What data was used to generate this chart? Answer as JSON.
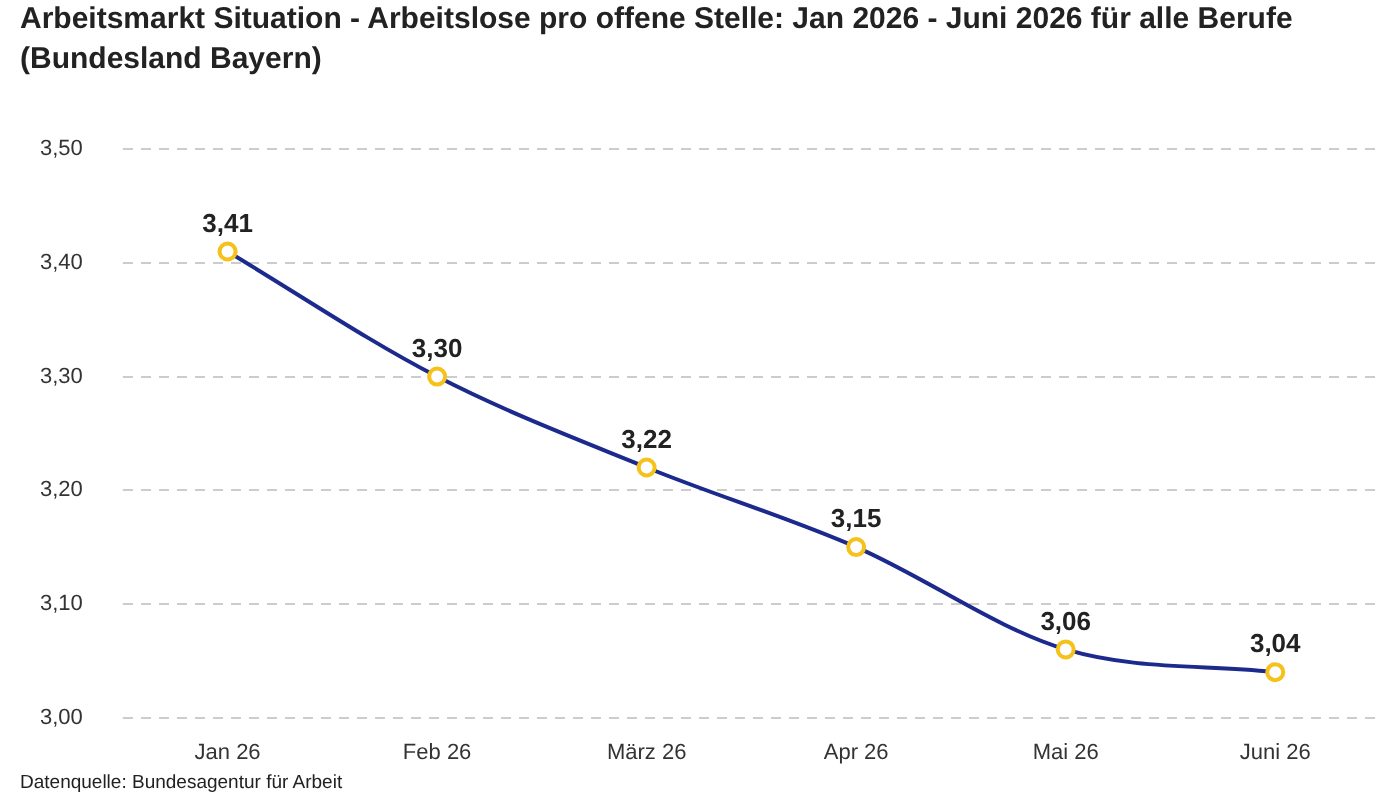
{
  "chart_data": {
    "type": "line",
    "title": "Arbeitsmarkt Situation - Arbeitslose pro offene Stelle: Jan 2026 - Juni 2026 für alle Berufe (Bundesland Bayern)",
    "categories": [
      "Jan 26",
      "Feb 26",
      "März 26",
      "Apr 26",
      "Mai 26",
      "Juni 26"
    ],
    "series": [
      {
        "color": "#1b2a8c",
        "values": [
          3.41,
          3.3,
          3.22,
          3.15,
          3.06,
          3.04
        ],
        "value_labels": [
          "3,41",
          "3,30",
          "3,22",
          "3,15",
          "3,06",
          "3,04"
        ]
      }
    ],
    "ylim": [
      3.0,
      3.5
    ],
    "yticks": [
      {
        "value": 3.0,
        "label": "3,00"
      },
      {
        "value": 3.1,
        "label": "3,10"
      },
      {
        "value": 3.2,
        "label": "3,20"
      },
      {
        "value": 3.3,
        "label": "3,30"
      },
      {
        "value": 3.4,
        "label": "3,40"
      },
      {
        "value": 3.5,
        "label": "3,50"
      }
    ],
    "grid": "y",
    "legend": false,
    "marker": "circle",
    "line_style": "solid",
    "annotations": [
      "Datenquelle: Bundesagentur für Arbeit"
    ]
  }
}
